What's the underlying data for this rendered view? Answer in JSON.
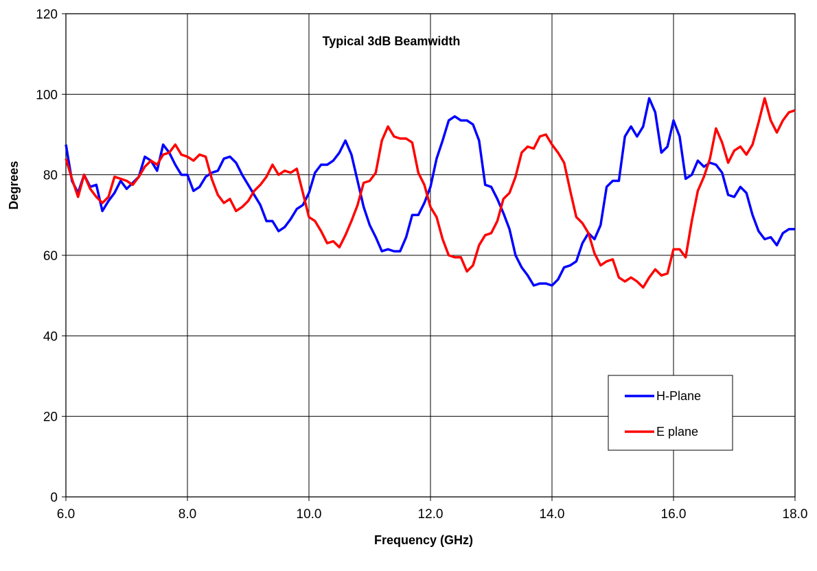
{
  "chart_data": {
    "type": "line",
    "title": "Typical 3dB Beamwidth",
    "xlabel": "Frequency (GHz)",
    "ylabel": "Degrees",
    "xlim": [
      6.0,
      18.0
    ],
    "ylim": [
      0,
      120
    ],
    "x_ticks": [
      "6.0",
      "8.0",
      "10.0",
      "12.0",
      "14.0",
      "16.0",
      "18.0"
    ],
    "y_ticks": [
      "0",
      "20",
      "40",
      "60",
      "80",
      "100",
      "120"
    ],
    "grid": true,
    "legend_position": "bottom-right",
    "x": [
      6.0,
      6.1,
      6.2,
      6.3,
      6.4,
      6.5,
      6.6,
      6.7,
      6.8,
      6.9,
      7.0,
      7.1,
      7.2,
      7.3,
      7.4,
      7.5,
      7.6,
      7.7,
      7.8,
      7.9,
      8.0,
      8.1,
      8.2,
      8.3,
      8.4,
      8.5,
      8.6,
      8.7,
      8.8,
      8.9,
      9.0,
      9.1,
      9.2,
      9.3,
      9.4,
      9.5,
      9.6,
      9.7,
      9.8,
      9.9,
      10.0,
      10.1,
      10.2,
      10.3,
      10.4,
      10.5,
      10.6,
      10.7,
      10.8,
      10.9,
      11.0,
      11.1,
      11.2,
      11.3,
      11.4,
      11.5,
      11.6,
      11.7,
      11.8,
      11.9,
      12.0,
      12.1,
      12.2,
      12.3,
      12.4,
      12.5,
      12.6,
      12.7,
      12.8,
      12.9,
      13.0,
      13.1,
      13.2,
      13.3,
      13.4,
      13.5,
      13.6,
      13.7,
      13.8,
      13.9,
      14.0,
      14.1,
      14.2,
      14.3,
      14.4,
      14.5,
      14.6,
      14.7,
      14.8,
      14.9,
      15.0,
      15.1,
      15.2,
      15.3,
      15.4,
      15.5,
      15.6,
      15.7,
      15.8,
      15.9,
      16.0,
      16.1,
      16.2,
      16.3,
      16.4,
      16.5,
      16.6,
      16.7,
      16.8,
      16.9,
      17.0,
      17.1,
      17.2,
      17.3,
      17.4,
      17.5,
      17.6,
      17.7,
      17.8,
      17.9,
      18.0
    ],
    "series": [
      {
        "name": "H-Plane",
        "color": "#0000ff",
        "values": [
          87.5,
          78.5,
          75.5,
          80.0,
          77.0,
          77.5,
          71.0,
          73.5,
          75.5,
          78.5,
          76.5,
          78.0,
          79.5,
          84.5,
          83.5,
          81.0,
          87.5,
          85.5,
          82.5,
          80.0,
          80.0,
          76.0,
          77.0,
          79.5,
          80.5,
          81.0,
          84.0,
          84.5,
          83.0,
          80.0,
          77.5,
          75.0,
          72.5,
          68.5,
          68.5,
          66.0,
          67.0,
          69.0,
          71.5,
          72.5,
          75.5,
          80.5,
          82.5,
          82.5,
          83.5,
          85.5,
          88.5,
          85.0,
          78.5,
          72.0,
          67.5,
          64.5,
          61.0,
          61.5,
          61.0,
          61.0,
          64.5,
          70.0,
          70.0,
          73.0,
          77.0,
          84.0,
          88.5,
          93.5,
          94.5,
          93.5,
          93.5,
          92.5,
          88.5,
          77.5,
          77.0,
          74.0,
          70.5,
          66.5,
          60.0,
          57.0,
          55.0,
          52.5,
          53.0,
          53.0,
          52.5,
          54.0,
          57.0,
          57.5,
          58.5,
          63.0,
          65.5,
          64.0,
          67.5,
          77.0,
          78.5,
          78.5,
          89.5,
          92.0,
          89.5,
          92.0,
          99.0,
          95.5,
          85.5,
          87.0,
          93.5,
          89.5,
          79.0,
          80.0,
          83.5,
          82.0,
          83.0,
          82.5,
          80.5,
          75.0,
          74.5,
          77.0,
          75.5,
          70.0,
          66.0,
          64.0,
          64.5,
          62.5,
          65.5,
          66.5,
          66.5
        ]
      },
      {
        "name": "E plane",
        "color": "#ff0000",
        "values": [
          84.0,
          79.0,
          74.5,
          80.0,
          76.5,
          74.5,
          73.0,
          74.5,
          79.5,
          79.0,
          78.5,
          77.5,
          79.5,
          82.0,
          83.5,
          82.5,
          85.0,
          85.5,
          87.5,
          85.0,
          84.5,
          83.5,
          85.0,
          84.5,
          79.0,
          75.0,
          73.0,
          74.0,
          71.0,
          72.0,
          73.5,
          76.0,
          77.5,
          79.5,
          82.5,
          80.0,
          81.0,
          80.5,
          81.5,
          75.5,
          69.5,
          68.5,
          66.0,
          63.0,
          63.5,
          62.0,
          65.0,
          68.5,
          72.5,
          78.0,
          78.5,
          80.5,
          88.5,
          92.0,
          89.5,
          89.0,
          89.0,
          88.0,
          80.5,
          77.5,
          72.0,
          69.5,
          64.0,
          60.0,
          59.5,
          59.5,
          56.0,
          57.5,
          62.5,
          65.0,
          65.5,
          68.5,
          74.0,
          75.5,
          79.5,
          85.5,
          87.0,
          86.5,
          89.5,
          90.0,
          87.5,
          85.5,
          83.0,
          76.0,
          69.5,
          68.0,
          65.5,
          60.5,
          57.5,
          58.5,
          59.0,
          54.5,
          53.5,
          54.5,
          53.5,
          52.0,
          54.5,
          56.5,
          55.0,
          55.5,
          61.5,
          61.5,
          59.5,
          68.5,
          76.0,
          79.5,
          84.0,
          91.5,
          88.0,
          83.0,
          86.0,
          87.0,
          85.0,
          87.5,
          93.0,
          99.0,
          93.5,
          90.5,
          93.5,
          95.5,
          96.0
        ]
      }
    ]
  }
}
